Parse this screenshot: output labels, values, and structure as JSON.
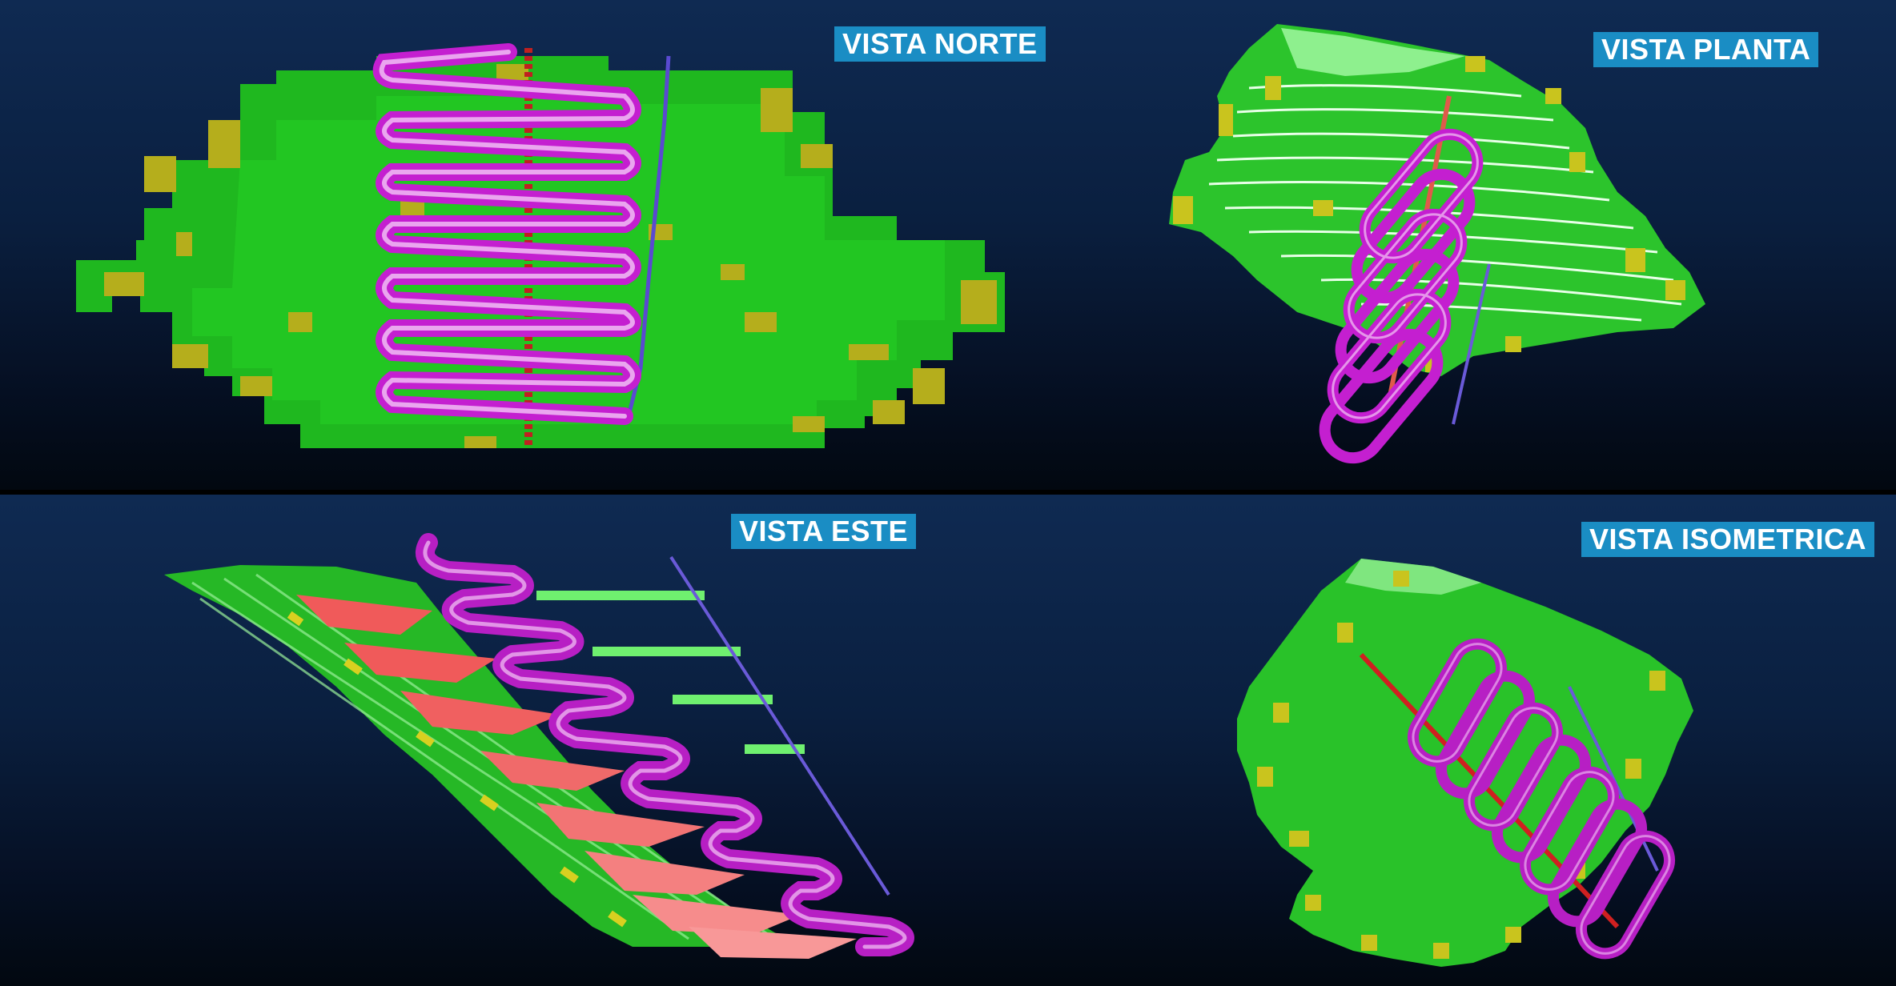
{
  "views": {
    "north": {
      "label": "VISTA NORTE"
    },
    "plan": {
      "label": "VISTA PLANTA"
    },
    "east": {
      "label": "VISTA ESTE"
    },
    "isometric": {
      "label": "VISTA ISOMETRICA"
    }
  },
  "colors": {
    "orebody_green": "#1fc41f",
    "orebody_yellow": "#b9b21e",
    "ramp_magenta": "#c41fd0",
    "ramp_highlight": "#f4c8f6",
    "shaft_red": "#d03a3a",
    "stope_red": "#f05a5a",
    "access_green": "#6ff06f",
    "raise_blue": "#6a5ad8",
    "label_bg": "#1a8dc4"
  }
}
